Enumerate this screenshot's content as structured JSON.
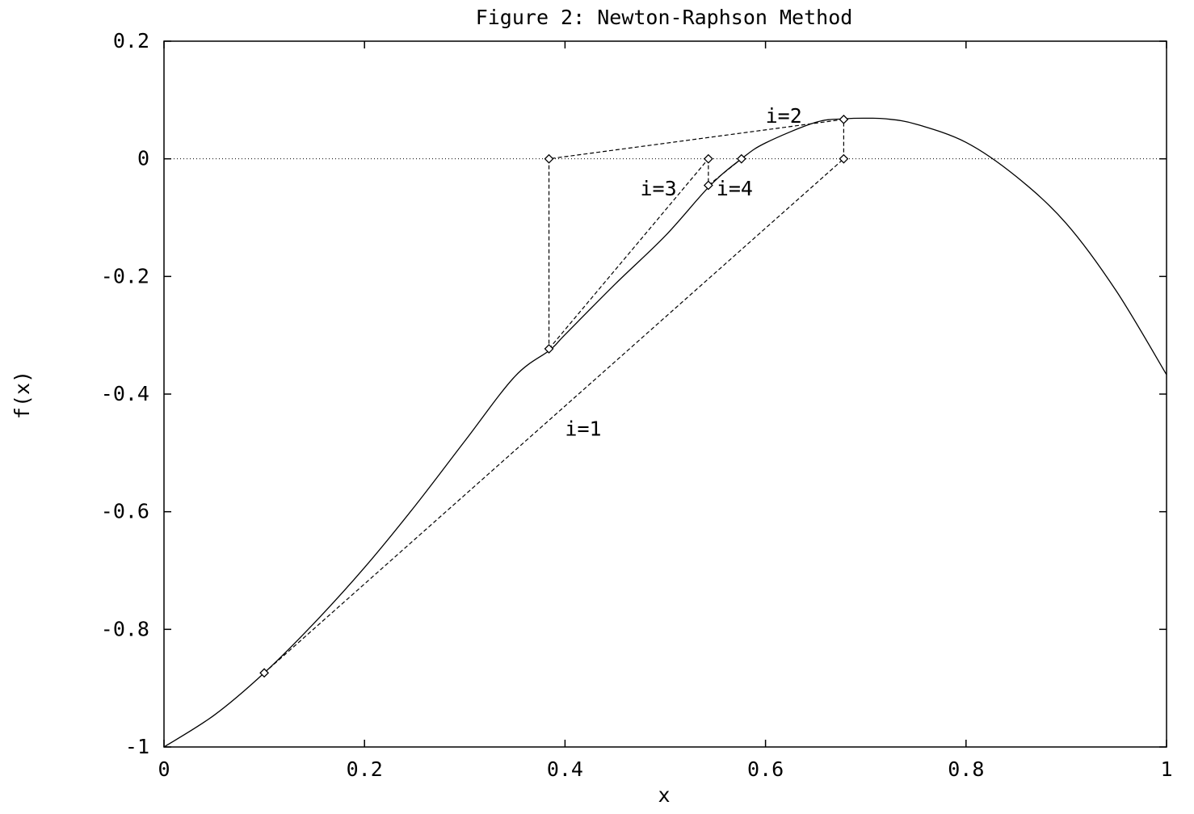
{
  "chart_data": {
    "type": "line",
    "title": "Figure 2: Newton-Raphson Method",
    "xlabel": "x",
    "ylabel": "f(x)",
    "xlim": [
      0,
      1
    ],
    "ylim": [
      -1,
      0.2
    ],
    "x_ticks": [
      "0",
      "0.2",
      "0.4",
      "0.6",
      "0.8",
      "1"
    ],
    "y_ticks": [
      "0.2",
      "0",
      "-0.2",
      "-0.4",
      "-0.6",
      "-0.8",
      "-1"
    ],
    "x_tick_values": [
      0,
      0.2,
      0.4,
      0.6,
      0.8,
      1
    ],
    "y_tick_values": [
      0.2,
      0,
      -0.2,
      -0.4,
      -0.6,
      -0.8,
      -1
    ],
    "zero_line": true,
    "grid": false,
    "curve": {
      "x": [
        0.0,
        0.05,
        0.1,
        0.15,
        0.2,
        0.25,
        0.3,
        0.35,
        0.385,
        0.4,
        0.45,
        0.5,
        0.545,
        0.576,
        0.6,
        0.65,
        0.68,
        0.7,
        0.72,
        0.75,
        0.8,
        0.85,
        0.9,
        0.95,
        1.0
      ],
      "y": [
        -1.0,
        -0.946,
        -0.874,
        -0.789,
        -0.695,
        -0.591,
        -0.48,
        -0.37,
        -0.325,
        -0.299,
        -0.213,
        -0.131,
        -0.045,
        0.0,
        0.027,
        0.062,
        0.068,
        0.069,
        0.068,
        0.059,
        0.028,
        -0.03,
        -0.11,
        -0.225,
        -0.367
      ]
    },
    "iterations": [
      {
        "label": "i=1",
        "start": [
          0.1,
          -0.874
        ],
        "root": [
          0.678,
          0.0
        ],
        "label_pos": [
          0.4,
          -0.46
        ]
      },
      {
        "label": "i=2",
        "start": [
          0.678,
          0.067
        ],
        "root": [
          0.384,
          0.0
        ],
        "label_pos": [
          0.6,
          0.072
        ]
      },
      {
        "label": "i=3",
        "start": [
          0.384,
          -0.323
        ],
        "root": [
          0.543,
          0.0
        ],
        "label_pos": [
          0.475,
          -0.051
        ]
      },
      {
        "label": "i=4",
        "start": [
          0.543,
          -0.045
        ],
        "root": [
          0.576,
          0.0
        ],
        "label_pos": [
          0.551,
          -0.051
        ]
      }
    ],
    "markers": [
      [
        0.1,
        -0.874
      ],
      [
        0.678,
        0.0
      ],
      [
        0.678,
        0.067
      ],
      [
        0.384,
        0.0
      ],
      [
        0.384,
        -0.323
      ],
      [
        0.543,
        0.0
      ],
      [
        0.543,
        -0.045
      ],
      [
        0.576,
        0.0
      ]
    ],
    "verticals": [
      [
        [
          0.678,
          0.0
        ],
        [
          0.678,
          0.067
        ]
      ],
      [
        [
          0.384,
          0.0
        ],
        [
          0.384,
          -0.323
        ]
      ],
      [
        [
          0.543,
          0.0
        ],
        [
          0.543,
          -0.045
        ]
      ]
    ]
  }
}
